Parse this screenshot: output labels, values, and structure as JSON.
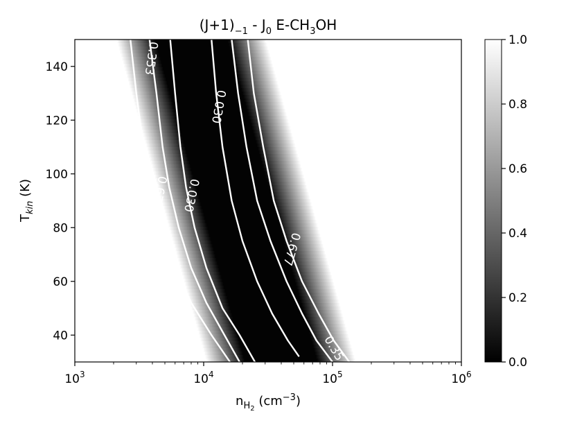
{
  "chart_data": {
    "type": "heatmap",
    "title": {
      "base": "(J+1)",
      "sub1": "−1",
      "mid": " - J",
      "sub2": "0",
      "tail1": " E-CH",
      "sub3": "3",
      "tail2": "OH"
    },
    "xlabel": {
      "base": "n",
      "sub": "H",
      "subsub": "2",
      "unit": " (cm",
      "sup": "−3",
      "close": ")"
    },
    "ylabel": {
      "base": "T",
      "sub": "kin",
      "unit": " (K)"
    },
    "x_scale": "log",
    "xlim": [
      1000,
      1000000
    ],
    "ylim": [
      30,
      150
    ],
    "x_ticks": [
      {
        "value": 1000,
        "base": "10",
        "exp": "3"
      },
      {
        "value": 10000,
        "base": "10",
        "exp": "4"
      },
      {
        "value": 100000,
        "base": "10",
        "exp": "5"
      },
      {
        "value": 1000000,
        "base": "10",
        "exp": "6"
      }
    ],
    "y_ticks": [
      40,
      60,
      80,
      100,
      120,
      140
    ],
    "colorbar": {
      "range": [
        0.0,
        1.0
      ],
      "ticks": [
        "0.0",
        "0.2",
        "0.4",
        "0.6",
        "0.8",
        "1.0"
      ],
      "colormap": "gray"
    },
    "valley_center": [
      {
        "T": 150,
        "n": 8000
      },
      {
        "T": 30,
        "n": 40000
      }
    ],
    "contours": [
      {
        "level": "0.030",
        "points": [
          [
            5500,
            150
          ],
          [
            6000,
            130
          ],
          [
            6600,
            110
          ],
          [
            7300,
            95
          ],
          [
            8500,
            80
          ],
          [
            10500,
            65
          ],
          [
            14000,
            50
          ],
          [
            19000,
            40
          ],
          [
            25000,
            30
          ]
        ]
      },
      {
        "level": "0.030",
        "points": [
          [
            11500,
            150
          ],
          [
            12500,
            130
          ],
          [
            14000,
            110
          ],
          [
            16500,
            90
          ],
          [
            20000,
            75
          ],
          [
            26000,
            60
          ],
          [
            34000,
            48
          ],
          [
            45000,
            38
          ],
          [
            55000,
            32
          ]
        ]
      },
      {
        "level": "0.353",
        "points": [
          [
            3800,
            150
          ],
          [
            4300,
            130
          ],
          [
            4800,
            110
          ],
          [
            5400,
            95
          ],
          [
            6400,
            80
          ],
          [
            8000,
            65
          ],
          [
            10500,
            52
          ],
          [
            14500,
            40
          ],
          [
            19000,
            30
          ]
        ]
      },
      {
        "level": "0.353",
        "points": [
          [
            16500,
            150
          ],
          [
            18500,
            130
          ],
          [
            21500,
            110
          ],
          [
            26000,
            90
          ],
          [
            33000,
            75
          ],
          [
            44000,
            60
          ],
          [
            58000,
            48
          ],
          [
            75000,
            38
          ],
          [
            100000,
            30
          ]
        ]
      },
      {
        "level": "0.677",
        "points": [
          [
            2700,
            150
          ],
          [
            3000,
            130
          ],
          [
            3400,
            110
          ],
          [
            3900,
            95
          ],
          [
            4700,
            80
          ],
          [
            6000,
            65
          ],
          [
            8000,
            52
          ],
          [
            11500,
            40
          ],
          [
            16000,
            30
          ]
        ]
      },
      {
        "level": "0.677",
        "points": [
          [
            22000,
            150
          ],
          [
            24500,
            130
          ],
          [
            29000,
            110
          ],
          [
            35000,
            90
          ],
          [
            44000,
            75
          ],
          [
            58000,
            60
          ],
          [
            78000,
            48
          ],
          [
            102000,
            38
          ],
          [
            135000,
            30
          ]
        ]
      }
    ],
    "contour_labels": [
      {
        "text": "0.353",
        "T": 143,
        "n": 3900,
        "rot": 98
      },
      {
        "text": "0.030",
        "T": 125,
        "n": 13000,
        "rot": 100
      },
      {
        "text": "0.677",
        "T": 93,
        "n": 4500,
        "rot": 102
      },
      {
        "text": "0.030",
        "T": 92,
        "n": 8000,
        "rot": 102
      },
      {
        "text": "0.677",
        "T": 72,
        "n": 48000,
        "rot": 106
      },
      {
        "text": "0.35",
        "T": 35,
        "n": 102000,
        "rot": 60
      }
    ]
  }
}
